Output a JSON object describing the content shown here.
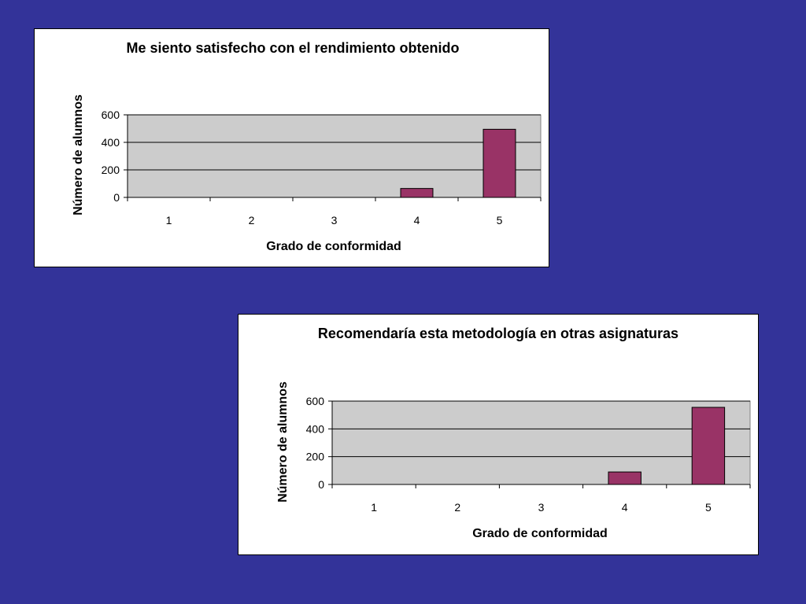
{
  "colors": {
    "background": "#333399",
    "plot_area": "#cccccc",
    "bar": "#993366",
    "bar_stroke": "#000000"
  },
  "chart_data": [
    {
      "type": "bar",
      "title": "Me siento satisfecho con el rendimiento obtenido",
      "xlabel": "Grado de conformidad",
      "ylabel": "Número de alumnos",
      "categories": [
        "1",
        "2",
        "3",
        "4",
        "5"
      ],
      "values": [
        0,
        0,
        0,
        65,
        495
      ],
      "ylim": [
        0,
        600
      ],
      "yticks": [
        "0",
        "200",
        "400",
        "600"
      ],
      "grid": true,
      "legend": "none"
    },
    {
      "type": "bar",
      "title": "Recomendaría esta metodología en otras asignaturas",
      "xlabel": "Grado de conformidad",
      "ylabel": "Número de alumnos",
      "categories": [
        "1",
        "2",
        "3",
        "4",
        "5"
      ],
      "values": [
        0,
        0,
        0,
        90,
        555
      ],
      "ylim": [
        0,
        600
      ],
      "yticks": [
        "0",
        "200",
        "400",
        "600"
      ],
      "grid": true,
      "legend": "none"
    }
  ]
}
